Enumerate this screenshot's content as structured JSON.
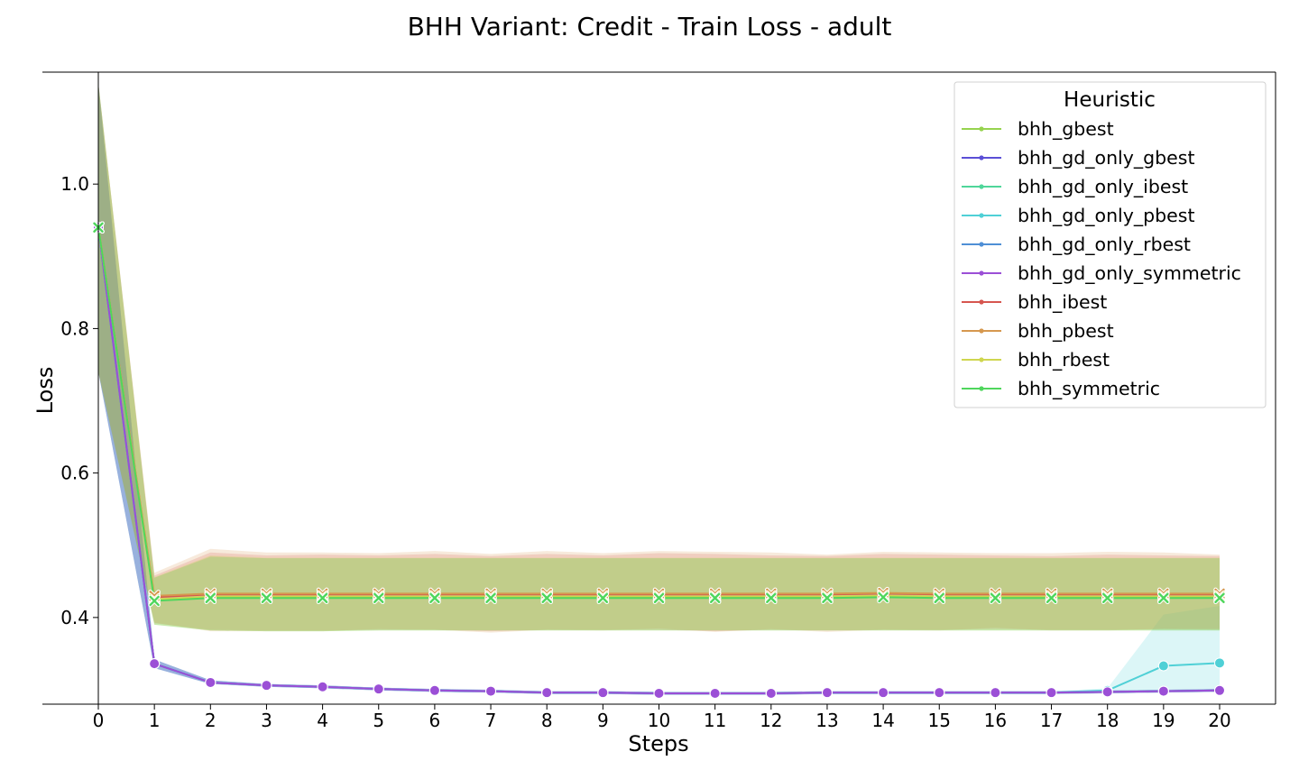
{
  "chart_data": {
    "type": "line",
    "title": "BHH Variant: Credit - Train Loss - adult",
    "xlabel": "Steps",
    "ylabel": "Loss",
    "x": [
      0,
      1,
      2,
      3,
      4,
      5,
      6,
      7,
      8,
      9,
      10,
      11,
      12,
      13,
      14,
      15,
      16,
      17,
      18,
      19,
      20
    ],
    "xlim": [
      -0.3,
      20.9
    ],
    "ylim": [
      0.28,
      1.155
    ],
    "yticks": [
      0.4,
      0.6,
      0.8,
      1.0
    ],
    "yticks_labels": [
      "0.4",
      "0.6",
      "0.8",
      "1.0"
    ],
    "grid": false,
    "legend": {
      "title": "Heuristic",
      "position": "top-right"
    },
    "series": [
      {
        "name": "bhh_gbest",
        "color": "#96d34f",
        "marker": "x",
        "values": [
          0.94,
          0.424,
          0.428,
          0.428,
          0.428,
          0.428,
          0.428,
          0.428,
          0.428,
          0.428,
          0.428,
          0.428,
          0.428,
          0.428,
          0.429,
          0.428,
          0.428,
          0.428,
          0.428,
          0.428,
          0.428
        ],
        "band_lower": [
          0.74,
          0.39,
          0.382,
          0.381,
          0.381,
          0.382,
          0.382,
          0.382,
          0.382,
          0.382,
          0.382,
          0.382,
          0.382,
          0.382,
          0.382,
          0.382,
          0.382,
          0.382,
          0.382,
          0.382,
          0.382
        ],
        "band_upper": [
          1.14,
          0.455,
          0.485,
          0.482,
          0.482,
          0.482,
          0.482,
          0.482,
          0.482,
          0.482,
          0.482,
          0.482,
          0.482,
          0.482,
          0.482,
          0.482,
          0.482,
          0.482,
          0.482,
          0.482,
          0.482
        ]
      },
      {
        "name": "bhh_gd_only_gbest",
        "color": "#5b4fd6",
        "marker": "o",
        "values": [
          0.94,
          0.336,
          0.31,
          0.306,
          0.304,
          0.301,
          0.299,
          0.298,
          0.296,
          0.296,
          0.295,
          0.295,
          0.295,
          0.296,
          0.296,
          0.296,
          0.296,
          0.296,
          0.297,
          0.298,
          0.299
        ],
        "band_lower": [
          0.74,
          0.33,
          0.308,
          0.304,
          0.302,
          0.299,
          0.297,
          0.296,
          0.294,
          0.294,
          0.293,
          0.293,
          0.293,
          0.294,
          0.294,
          0.294,
          0.294,
          0.294,
          0.295,
          0.296,
          0.297
        ],
        "band_upper": [
          1.14,
          0.342,
          0.313,
          0.308,
          0.306,
          0.303,
          0.301,
          0.3,
          0.298,
          0.298,
          0.297,
          0.297,
          0.297,
          0.298,
          0.298,
          0.298,
          0.298,
          0.298,
          0.299,
          0.3,
          0.301
        ]
      },
      {
        "name": "bhh_gd_only_ibest",
        "color": "#4fd69a",
        "marker": "o",
        "values": [
          0.94,
          0.336,
          0.31,
          0.306,
          0.304,
          0.301,
          0.299,
          0.298,
          0.296,
          0.296,
          0.295,
          0.295,
          0.295,
          0.296,
          0.296,
          0.296,
          0.296,
          0.296,
          0.297,
          0.298,
          0.299
        ],
        "band_lower": [
          0.74,
          0.33,
          0.308,
          0.304,
          0.302,
          0.299,
          0.297,
          0.296,
          0.294,
          0.294,
          0.293,
          0.293,
          0.293,
          0.294,
          0.294,
          0.294,
          0.294,
          0.294,
          0.295,
          0.296,
          0.297
        ],
        "band_upper": [
          1.14,
          0.342,
          0.313,
          0.308,
          0.306,
          0.303,
          0.301,
          0.3,
          0.298,
          0.298,
          0.297,
          0.297,
          0.297,
          0.298,
          0.298,
          0.298,
          0.298,
          0.298,
          0.299,
          0.3,
          0.301
        ]
      },
      {
        "name": "bhh_gd_only_pbest",
        "color": "#4fd0d6",
        "marker": "o",
        "values": [
          0.94,
          0.336,
          0.31,
          0.306,
          0.304,
          0.301,
          0.299,
          0.298,
          0.296,
          0.296,
          0.295,
          0.295,
          0.295,
          0.296,
          0.296,
          0.296,
          0.296,
          0.296,
          0.299,
          0.333,
          0.337
        ],
        "band_lower": [
          0.74,
          0.33,
          0.308,
          0.304,
          0.302,
          0.299,
          0.297,
          0.296,
          0.294,
          0.294,
          0.293,
          0.293,
          0.293,
          0.294,
          0.294,
          0.294,
          0.294,
          0.294,
          0.296,
          0.298,
          0.299
        ],
        "band_upper": [
          1.14,
          0.342,
          0.313,
          0.308,
          0.306,
          0.303,
          0.301,
          0.3,
          0.298,
          0.298,
          0.297,
          0.297,
          0.297,
          0.298,
          0.298,
          0.298,
          0.298,
          0.298,
          0.302,
          0.404,
          0.416
        ]
      },
      {
        "name": "bhh_gd_only_rbest",
        "color": "#4f8fd6",
        "marker": "o",
        "values": [
          0.94,
          0.336,
          0.31,
          0.306,
          0.304,
          0.301,
          0.299,
          0.298,
          0.296,
          0.296,
          0.295,
          0.295,
          0.295,
          0.296,
          0.296,
          0.296,
          0.296,
          0.296,
          0.297,
          0.298,
          0.299
        ],
        "band_lower": [
          0.74,
          0.33,
          0.308,
          0.304,
          0.302,
          0.299,
          0.297,
          0.296,
          0.294,
          0.294,
          0.293,
          0.293,
          0.293,
          0.294,
          0.294,
          0.294,
          0.294,
          0.294,
          0.295,
          0.296,
          0.297
        ],
        "band_upper": [
          1.14,
          0.342,
          0.313,
          0.308,
          0.306,
          0.303,
          0.301,
          0.3,
          0.298,
          0.298,
          0.297,
          0.297,
          0.297,
          0.298,
          0.298,
          0.298,
          0.298,
          0.298,
          0.299,
          0.3,
          0.301
        ]
      },
      {
        "name": "bhh_gd_only_symmetric",
        "color": "#9b4fd6",
        "marker": "o",
        "values": [
          0.94,
          0.336,
          0.31,
          0.306,
          0.304,
          0.301,
          0.299,
          0.298,
          0.296,
          0.296,
          0.295,
          0.295,
          0.295,
          0.296,
          0.296,
          0.296,
          0.296,
          0.296,
          0.297,
          0.298,
          0.299
        ],
        "band_lower": [
          0.74,
          0.33,
          0.308,
          0.304,
          0.302,
          0.299,
          0.297,
          0.296,
          0.294,
          0.294,
          0.293,
          0.293,
          0.293,
          0.294,
          0.294,
          0.294,
          0.294,
          0.294,
          0.295,
          0.296,
          0.297
        ],
        "band_upper": [
          1.14,
          0.342,
          0.313,
          0.308,
          0.306,
          0.303,
          0.301,
          0.3,
          0.298,
          0.298,
          0.297,
          0.297,
          0.297,
          0.298,
          0.298,
          0.298,
          0.298,
          0.298,
          0.299,
          0.3,
          0.301
        ]
      },
      {
        "name": "bhh_ibest",
        "color": "#d6564f",
        "marker": "x",
        "values": [
          0.94,
          0.428,
          0.432,
          0.432,
          0.432,
          0.432,
          0.432,
          0.432,
          0.432,
          0.432,
          0.432,
          0.432,
          0.432,
          0.432,
          0.433,
          0.432,
          0.432,
          0.432,
          0.432,
          0.432,
          0.432
        ],
        "band_lower": [
          0.74,
          0.392,
          0.383,
          0.382,
          0.382,
          0.383,
          0.383,
          0.381,
          0.383,
          0.383,
          0.383,
          0.381,
          0.383,
          0.382,
          0.383,
          0.383,
          0.384,
          0.383,
          0.383,
          0.384,
          0.384
        ],
        "band_upper": [
          1.14,
          0.458,
          0.49,
          0.486,
          0.487,
          0.486,
          0.488,
          0.485,
          0.488,
          0.486,
          0.489,
          0.488,
          0.486,
          0.485,
          0.488,
          0.487,
          0.486,
          0.485,
          0.487,
          0.486,
          0.485
        ]
      },
      {
        "name": "bhh_pbest",
        "color": "#d6984f",
        "marker": "x",
        "values": [
          0.94,
          0.43,
          0.433,
          0.433,
          0.433,
          0.433,
          0.433,
          0.433,
          0.433,
          0.433,
          0.433,
          0.433,
          0.433,
          0.433,
          0.434,
          0.433,
          0.433,
          0.433,
          0.433,
          0.433,
          0.433
        ],
        "band_lower": [
          0.74,
          0.393,
          0.381,
          0.381,
          0.381,
          0.384,
          0.383,
          0.379,
          0.383,
          0.382,
          0.385,
          0.38,
          0.384,
          0.38,
          0.383,
          0.382,
          0.386,
          0.382,
          0.382,
          0.384,
          0.383
        ],
        "band_upper": [
          1.14,
          0.462,
          0.495,
          0.49,
          0.49,
          0.489,
          0.492,
          0.488,
          0.492,
          0.489,
          0.492,
          0.491,
          0.49,
          0.487,
          0.491,
          0.49,
          0.489,
          0.489,
          0.491,
          0.49,
          0.487
        ]
      },
      {
        "name": "bhh_rbest",
        "color": "#cfd64f",
        "marker": "x",
        "values": [
          0.94,
          0.425,
          0.429,
          0.429,
          0.429,
          0.429,
          0.429,
          0.429,
          0.429,
          0.429,
          0.429,
          0.429,
          0.429,
          0.429,
          0.43,
          0.429,
          0.429,
          0.429,
          0.429,
          0.429,
          0.429
        ],
        "band_lower": [
          0.74,
          0.39,
          0.382,
          0.381,
          0.381,
          0.382,
          0.382,
          0.382,
          0.382,
          0.382,
          0.382,
          0.382,
          0.382,
          0.382,
          0.382,
          0.382,
          0.382,
          0.382,
          0.382,
          0.382,
          0.382
        ],
        "band_upper": [
          1.14,
          0.456,
          0.486,
          0.483,
          0.483,
          0.483,
          0.483,
          0.483,
          0.483,
          0.483,
          0.483,
          0.483,
          0.483,
          0.483,
          0.483,
          0.483,
          0.483,
          0.483,
          0.483,
          0.483,
          0.483
        ]
      },
      {
        "name": "bhh_symmetric",
        "color": "#4fd65c",
        "marker": "x",
        "values": [
          0.94,
          0.423,
          0.427,
          0.427,
          0.427,
          0.427,
          0.427,
          0.427,
          0.427,
          0.427,
          0.427,
          0.427,
          0.427,
          0.427,
          0.428,
          0.427,
          0.427,
          0.427,
          0.427,
          0.427,
          0.427
        ],
        "band_lower": [
          0.74,
          0.39,
          0.382,
          0.381,
          0.381,
          0.382,
          0.382,
          0.382,
          0.382,
          0.382,
          0.382,
          0.382,
          0.382,
          0.382,
          0.382,
          0.382,
          0.382,
          0.382,
          0.382,
          0.382,
          0.382
        ],
        "band_upper": [
          1.14,
          0.455,
          0.484,
          0.482,
          0.482,
          0.482,
          0.482,
          0.482,
          0.482,
          0.482,
          0.482,
          0.482,
          0.482,
          0.482,
          0.482,
          0.482,
          0.482,
          0.482,
          0.482,
          0.482,
          0.482
        ]
      }
    ]
  }
}
